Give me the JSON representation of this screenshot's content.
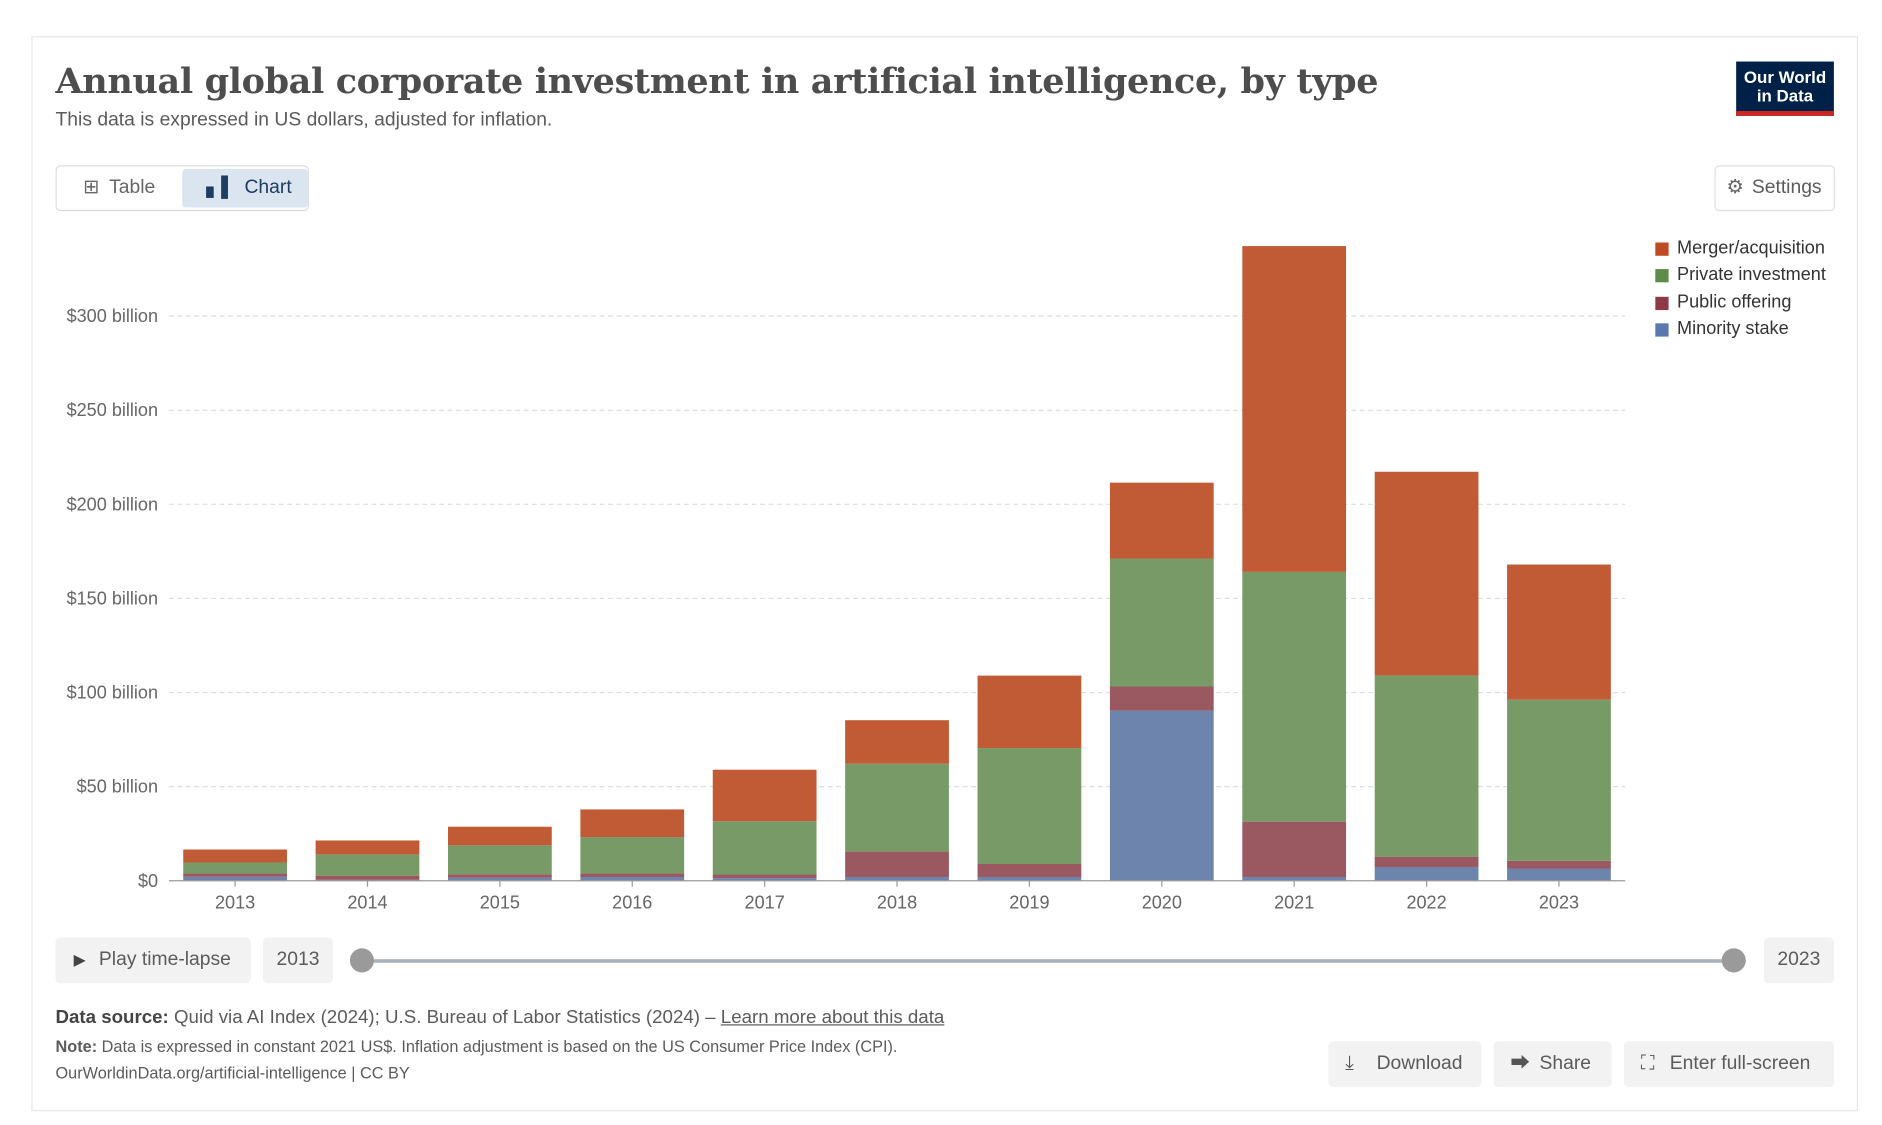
{
  "header": {
    "title": "Annual global corporate investment in artificial intelligence, by type",
    "subtitle": "This data is expressed in US dollars, adjusted for inflation.",
    "logo_text": "Our World in Data"
  },
  "tabs": [
    {
      "label": "Table",
      "icon": "table-icon",
      "active": false
    },
    {
      "label": "Chart",
      "icon": "bar-chart-icon",
      "active": true
    }
  ],
  "settings_label": "Settings",
  "chart_data": {
    "type": "bar",
    "stacked": true,
    "categories": [
      "2013",
      "2014",
      "2015",
      "2016",
      "2017",
      "2018",
      "2019",
      "2020",
      "2021",
      "2022",
      "2023"
    ],
    "series": [
      {
        "name": "Minority stake",
        "color": "#6d84ad",
        "values": [
          2.1,
          0.5,
          1.6,
          2.0,
          1.4,
          2.0,
          2.0,
          90.4,
          2.0,
          7.3,
          6.5
        ]
      },
      {
        "name": "Public offering",
        "color": "#9a5860",
        "values": [
          1.8,
          2.2,
          1.8,
          1.9,
          1.9,
          13.5,
          6.9,
          12.8,
          29.4,
          5.5,
          4.1
        ]
      },
      {
        "name": "Private investment",
        "color": "#789a67",
        "values": [
          5.8,
          11.3,
          15.4,
          19.3,
          28.3,
          46.7,
          61.6,
          68.0,
          132.7,
          96.2,
          85.6
        ]
      },
      {
        "name": "Merger/acquisition",
        "color": "#c15b35",
        "values": [
          6.9,
          7.4,
          9.9,
          14.7,
          27.4,
          23.1,
          38.5,
          40.3,
          173.1,
          108.3,
          71.8
        ]
      }
    ],
    "legend_order": [
      "Merger/acquisition",
      "Private investment",
      "Public offering",
      "Minority stake"
    ],
    "legend_colors": [
      "#c04a22",
      "#5d8c4b",
      "#8e3a46",
      "#5a78ae"
    ],
    "yticks": [
      {
        "value": 0,
        "label": "$0"
      },
      {
        "value": 50,
        "label": "$50 billion"
      },
      {
        "value": 100,
        "label": "$100 billion"
      },
      {
        "value": 150,
        "label": "$150 billion"
      },
      {
        "value": 200,
        "label": "$200 billion"
      },
      {
        "value": 250,
        "label": "$250 billion"
      },
      {
        "value": 300,
        "label": "$300 billion"
      }
    ],
    "ylim": [
      0,
      340
    ],
    "yunit": "billion US$",
    "grid": true,
    "legend_position": "right"
  },
  "timeline": {
    "play_label": "Play time-lapse",
    "start": "2013",
    "end": "2023"
  },
  "footer": {
    "source_label": "Data source:",
    "source_text": "Quid via AI Index (2024); U.S. Bureau of Labor Statistics (2024) –",
    "source_link": "Learn more about this data",
    "note_label": "Note:",
    "note_text": "Data is expressed in constant 2021 US$. Inflation adjustment is based on the US Consumer Price Index (CPI).",
    "url_text": "OurWorldinData.org/artificial-intelligence | CC BY"
  },
  "actions": [
    {
      "label": "Download",
      "icon": "download-icon"
    },
    {
      "label": "Share",
      "icon": "share-icon"
    },
    {
      "label": "Enter full-screen",
      "icon": "fullscreen-icon"
    }
  ]
}
